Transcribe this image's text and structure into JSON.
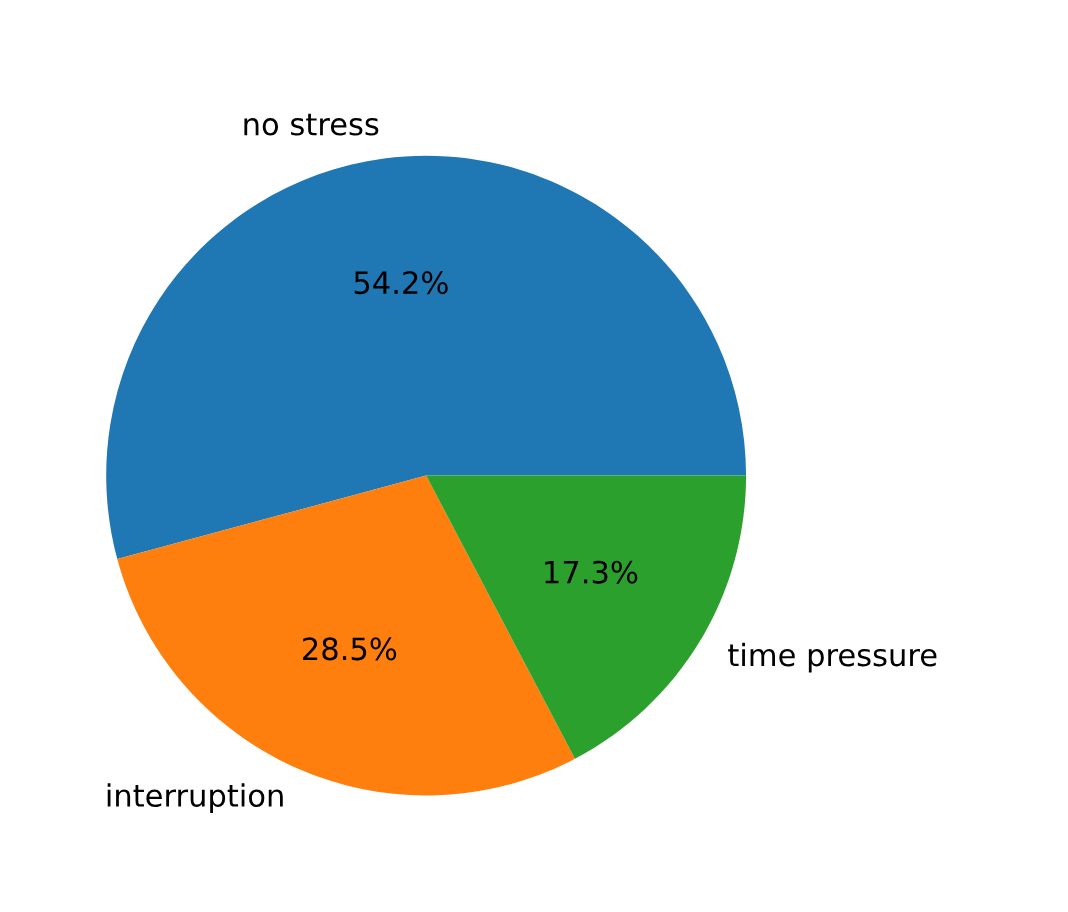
{
  "chart_data": {
    "type": "pie",
    "categories": [
      "no stress",
      "interruption",
      "time pressure"
    ],
    "values": [
      54.2,
      28.5,
      17.3
    ],
    "colors": [
      "#1f77b4",
      "#ff7f0e",
      "#2ca02c"
    ],
    "value_labels": [
      "54.2%",
      "28.5%",
      "17.3%"
    ]
  }
}
